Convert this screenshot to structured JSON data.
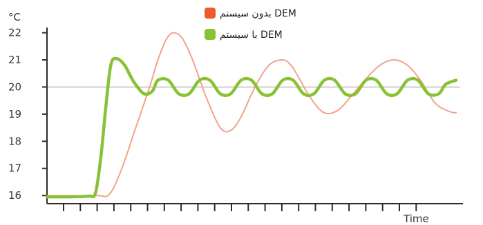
{
  "chart_data": {
    "type": "line",
    "ylabel": "°C",
    "xlabel": "Time",
    "ylim": [
      15.7,
      22.7
    ],
    "xlim": [
      0,
      590
    ],
    "yticks": [
      "16",
      "17",
      "18",
      "19",
      "20",
      "21",
      "22"
    ],
    "x_tick_count": 22,
    "grid": false,
    "reference_line": 20,
    "legend_position": "top-center",
    "series": [
      {
        "name": "بدون سيستم DEM",
        "color": "#f4a18a",
        "legend_color": "#ee5a2a",
        "x": [
          0,
          70,
          90,
          108,
          128,
          148,
          160,
          172,
          182,
          195,
          210,
          230,
          250,
          265,
          280,
          300,
          320,
          340,
          352,
          362,
          380,
          400,
          420,
          440,
          460,
          480,
          500,
          520,
          540,
          560,
          580,
          590
        ],
        "values": [
          16.0,
          16.0,
          16.05,
          17.0,
          18.5,
          20.0,
          21.0,
          21.75,
          22.0,
          21.8,
          21.0,
          19.6,
          18.5,
          18.4,
          18.9,
          20.0,
          20.8,
          21.0,
          20.8,
          20.4,
          19.6,
          19.05,
          19.15,
          19.7,
          20.3,
          20.8,
          21.0,
          20.8,
          20.2,
          19.4,
          19.1,
          19.05
        ]
      },
      {
        "name": "با سيستم DEM",
        "color": "#88c234",
        "legend_color": "#88c234",
        "x": [
          0,
          30,
          60,
          70,
          78,
          85,
          92,
          100,
          112,
          125,
          140,
          152,
          160,
          175,
          190,
          205,
          220,
          235,
          250,
          265,
          280,
          295,
          310,
          325,
          340,
          355,
          370,
          385,
          400,
          415,
          430,
          445,
          460,
          475,
          490,
          505,
          520,
          535,
          550,
          565,
          575,
          590
        ],
        "values": [
          15.95,
          15.95,
          15.98,
          16.1,
          17.5,
          19.3,
          20.8,
          21.05,
          20.8,
          20.2,
          19.75,
          19.85,
          20.25,
          20.25,
          19.75,
          19.75,
          20.25,
          20.25,
          19.75,
          19.75,
          20.25,
          20.25,
          19.75,
          19.75,
          20.25,
          20.25,
          19.75,
          19.75,
          20.25,
          20.25,
          19.75,
          19.75,
          20.25,
          20.25,
          19.75,
          19.75,
          20.25,
          20.25,
          19.75,
          19.75,
          20.1,
          20.25
        ]
      }
    ]
  }
}
